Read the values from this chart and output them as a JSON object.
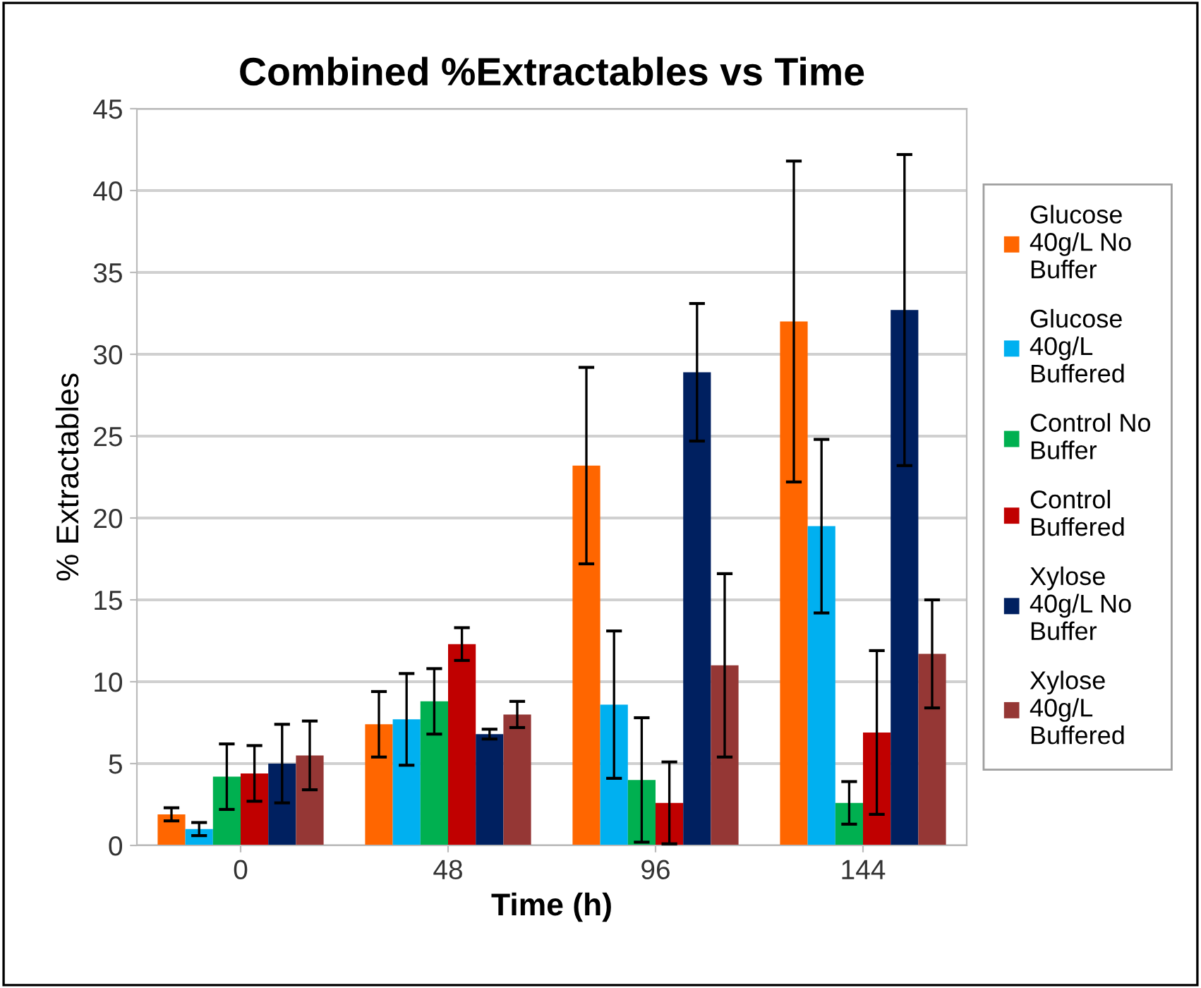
{
  "chart_data": {
    "type": "bar",
    "title": "Combined %Extractables vs Time",
    "xlabel": "Time (h)",
    "ylabel": "% Extractables",
    "categories": [
      "0",
      "48",
      "96",
      "144"
    ],
    "series": [
      {
        "name": "Glucose 40g/L No Buffer",
        "color": "#ff6600",
        "values": [
          1.9,
          7.4,
          23.2,
          32.0
        ],
        "errors": [
          0.4,
          2.0,
          6.0,
          9.8
        ]
      },
      {
        "name": "Glucose 40g/L Buffered",
        "color": "#00b0f0",
        "values": [
          1.0,
          7.7,
          8.6,
          19.5
        ],
        "errors": [
          0.4,
          2.8,
          4.5,
          5.3
        ]
      },
      {
        "name": "Control No Buffer",
        "color": "#00b050",
        "values": [
          4.2,
          8.8,
          4.0,
          2.6
        ],
        "errors": [
          2.0,
          2.0,
          3.8,
          1.3
        ]
      },
      {
        "name": "Control Buffered",
        "color": "#c00000",
        "values": [
          4.4,
          12.3,
          2.6,
          6.9
        ],
        "errors": [
          1.7,
          1.0,
          2.5,
          5.0
        ]
      },
      {
        "name": "Xylose 40g/L No Buffer",
        "color": "#002060",
        "values": [
          5.0,
          6.8,
          28.9,
          32.7
        ],
        "errors": [
          2.4,
          0.3,
          4.2,
          9.5
        ]
      },
      {
        "name": "Xylose 40g/L Buffered",
        "color": "#953735",
        "values": [
          5.5,
          8.0,
          11.0,
          11.7
        ],
        "errors": [
          2.1,
          0.8,
          5.6,
          3.3
        ]
      }
    ],
    "ylim": [
      0,
      45
    ],
    "yticks": [
      0,
      5,
      10,
      15,
      20,
      25,
      30,
      35,
      40,
      45
    ],
    "grid": "y",
    "legend": "right"
  }
}
